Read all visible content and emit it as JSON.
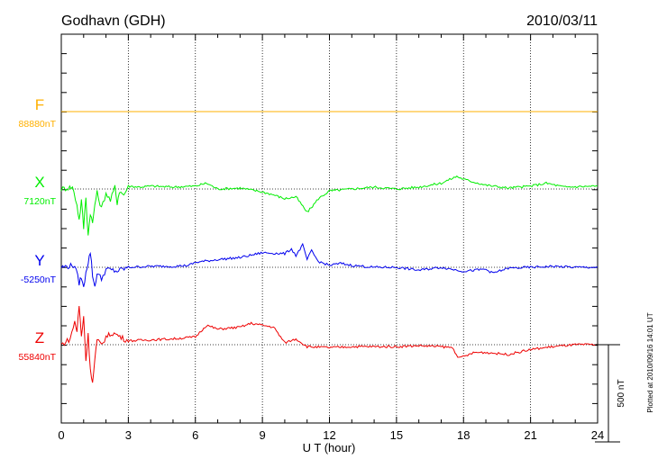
{
  "chart_data": {
    "type": "line",
    "title": "Godhavn (GDH)",
    "date": "2010/03/11",
    "xlabel": "U T (hour)",
    "xlim": [
      0,
      24
    ],
    "xticks": [
      0,
      3,
      6,
      9,
      12,
      15,
      18,
      21,
      24
    ],
    "xtick_labels": [
      "0",
      "3",
      "6",
      "9",
      "12",
      "15",
      "18",
      "21",
      "24"
    ],
    "grid": true,
    "y_span_nT": 2000,
    "scale_bar": {
      "value": 500,
      "label": "500 nT"
    },
    "footer": "Plotted at 2010/09/16 14:01 UT",
    "series": [
      {
        "name": "F",
        "baseline_label": "88880nT",
        "baseline_nT": 88880,
        "color": "#ffb000",
        "points": [
          [
            0,
            0
          ],
          [
            24,
            0
          ]
        ]
      },
      {
        "name": "X",
        "baseline_label": "7120nT",
        "baseline_nT": 7120,
        "color": "#00ee00",
        "points": [
          [
            0,
            0
          ],
          [
            0.5,
            10
          ],
          [
            0.7,
            -80
          ],
          [
            0.8,
            -160
          ],
          [
            0.9,
            -60
          ],
          [
            1.0,
            -200
          ],
          [
            1.1,
            -40
          ],
          [
            1.2,
            -240
          ],
          [
            1.3,
            -120
          ],
          [
            1.4,
            -180
          ],
          [
            1.5,
            -80
          ],
          [
            1.6,
            -20
          ],
          [
            1.8,
            -100
          ],
          [
            2.0,
            -20
          ],
          [
            2.2,
            -60
          ],
          [
            2.4,
            10
          ],
          [
            2.5,
            -70
          ],
          [
            2.6,
            -10
          ],
          [
            2.8,
            -30
          ],
          [
            3.0,
            15
          ],
          [
            3.5,
            10
          ],
          [
            4.0,
            15
          ],
          [
            5.0,
            10
          ],
          [
            6.0,
            15
          ],
          [
            6.5,
            30
          ],
          [
            7.0,
            0
          ],
          [
            8.0,
            5
          ],
          [
            9.0,
            -15
          ],
          [
            9.5,
            -30
          ],
          [
            10.0,
            -50
          ],
          [
            10.5,
            -40
          ],
          [
            11.0,
            -120
          ],
          [
            11.3,
            -80
          ],
          [
            11.5,
            -50
          ],
          [
            12.0,
            -10
          ],
          [
            13.0,
            0
          ],
          [
            14.0,
            10
          ],
          [
            15.0,
            0
          ],
          [
            16.0,
            10
          ],
          [
            17.0,
            30
          ],
          [
            17.7,
            65
          ],
          [
            18.0,
            50
          ],
          [
            19.0,
            20
          ],
          [
            20.0,
            5
          ],
          [
            21.0,
            15
          ],
          [
            21.7,
            30
          ],
          [
            22.5,
            10
          ],
          [
            24.0,
            15
          ]
        ]
      },
      {
        "name": "Y",
        "baseline_label": "-5250nT",
        "baseline_nT": -5250,
        "color": "#0000ee",
        "points": [
          [
            0,
            0
          ],
          [
            0.6,
            10
          ],
          [
            0.8,
            -80
          ],
          [
            0.9,
            -50
          ],
          [
            1.0,
            -110
          ],
          [
            1.1,
            -20
          ],
          [
            1.2,
            25
          ],
          [
            1.3,
            80
          ],
          [
            1.4,
            -40
          ],
          [
            1.5,
            -100
          ],
          [
            1.6,
            -30
          ],
          [
            1.8,
            -60
          ],
          [
            2.0,
            -10
          ],
          [
            2.5,
            -20
          ],
          [
            3.0,
            0
          ],
          [
            4.0,
            5
          ],
          [
            5.0,
            5
          ],
          [
            5.7,
            10
          ],
          [
            6.0,
            25
          ],
          [
            7.0,
            40
          ],
          [
            8.0,
            50
          ],
          [
            9.0,
            75
          ],
          [
            10.0,
            70
          ],
          [
            10.3,
            95
          ],
          [
            10.5,
            60
          ],
          [
            10.8,
            115
          ],
          [
            11.0,
            40
          ],
          [
            11.2,
            85
          ],
          [
            11.5,
            30
          ],
          [
            12.0,
            10
          ],
          [
            12.5,
            20
          ],
          [
            13.0,
            10
          ],
          [
            14.0,
            0
          ],
          [
            15.0,
            0
          ],
          [
            16.0,
            -15
          ],
          [
            17.0,
            0
          ],
          [
            18.0,
            -20
          ],
          [
            19.0,
            -10
          ],
          [
            19.3,
            -30
          ],
          [
            20.0,
            -5
          ],
          [
            21.0,
            0
          ],
          [
            22.0,
            5
          ],
          [
            23.0,
            0
          ],
          [
            24.0,
            0
          ]
        ]
      },
      {
        "name": "Z",
        "baseline_label": "55840nT",
        "baseline_nT": 55840,
        "color": "#ee0000",
        "points": [
          [
            0,
            0
          ],
          [
            0.4,
            30
          ],
          [
            0.6,
            120
          ],
          [
            0.7,
            70
          ],
          [
            0.8,
            200
          ],
          [
            0.9,
            40
          ],
          [
            1.0,
            150
          ],
          [
            1.1,
            -80
          ],
          [
            1.2,
            50
          ],
          [
            1.3,
            -120
          ],
          [
            1.4,
            -200
          ],
          [
            1.5,
            -80
          ],
          [
            1.6,
            20
          ],
          [
            1.8,
            0
          ],
          [
            2.0,
            40
          ],
          [
            2.3,
            60
          ],
          [
            2.5,
            50
          ],
          [
            2.8,
            30
          ],
          [
            3.0,
            20
          ],
          [
            4.0,
            25
          ],
          [
            5.0,
            30
          ],
          [
            6.0,
            40
          ],
          [
            6.5,
            100
          ],
          [
            7.0,
            80
          ],
          [
            8.0,
            90
          ],
          [
            8.5,
            110
          ],
          [
            9.0,
            100
          ],
          [
            9.5,
            90
          ],
          [
            10.0,
            10
          ],
          [
            10.5,
            30
          ],
          [
            11.0,
            -10
          ],
          [
            12.0,
            -15
          ],
          [
            13.0,
            -10
          ],
          [
            14.0,
            -10
          ],
          [
            15.0,
            -10
          ],
          [
            16.0,
            -5
          ],
          [
            17.0,
            -10
          ],
          [
            17.5,
            -15
          ],
          [
            17.8,
            -70
          ],
          [
            18.5,
            -40
          ],
          [
            19.0,
            -40
          ],
          [
            20.0,
            -50
          ],
          [
            21.0,
            -25
          ],
          [
            22.0,
            -10
          ],
          [
            23.0,
            0
          ],
          [
            24.0,
            0
          ]
        ]
      }
    ]
  }
}
